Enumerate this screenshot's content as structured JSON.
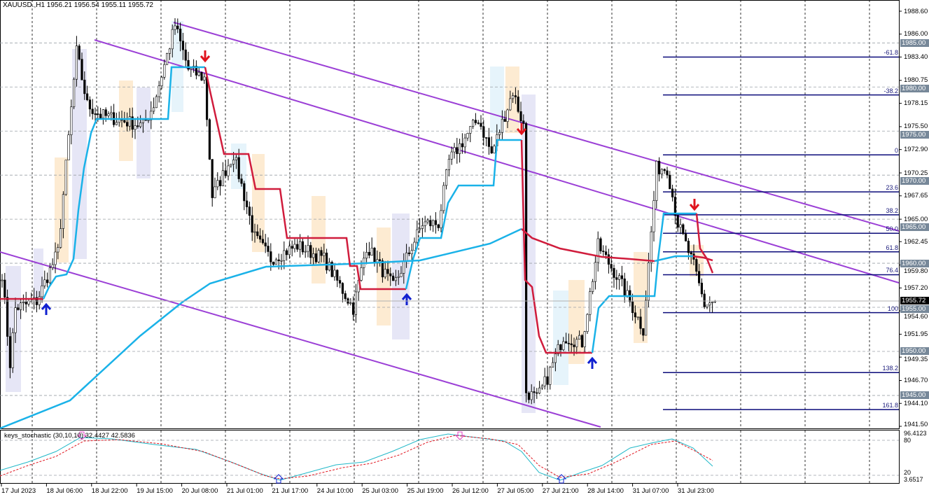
{
  "header": {
    "symbol_title": "XAUUSD.,H1  1956.21 1956.54 1955.11 1955.72"
  },
  "indicator": {
    "label": "keys_stochastic (30,10,10) 32.4427 42.5836",
    "levels": [
      "96.4123",
      "80",
      "20",
      "3.6517"
    ]
  },
  "price_axis": {
    "ticks": [
      "1988.60",
      "1986.00",
      "1983.40",
      "1980.75",
      "1978.15",
      "1975.50",
      "1972.90",
      "1970.25",
      "1967.65",
      "1965.00",
      "1962.45",
      "1959.80",
      "1957.20",
      "1954.60",
      "1951.95",
      "1949.35",
      "1946.70",
      "1944.10",
      "1941.50"
    ],
    "levels": [
      "1985.00",
      "1980.00",
      "1975.00",
      "1970.00",
      "1965.00",
      "1960.00",
      "1955.00",
      "1950.00",
      "1945.00"
    ],
    "current_price": "1955.72"
  },
  "time_axis": [
    "17 Jul 2023",
    "18 Jul 06:00",
    "18 Jul 22:00",
    "19 Jul 15:00",
    "20 Jul 08:00",
    "21 Jul 01:00",
    "21 Jul 17:00",
    "24 Jul 10:00",
    "25 Jul 03:00",
    "25 Jul 19:00",
    "26 Jul 12:00",
    "27 Jul 05:00",
    "27 Jul 21:00",
    "28 Jul 14:00",
    "31 Jul 07:00",
    "31 Jul 23:00"
  ],
  "fibonacci": {
    "levels": [
      {
        "label": "-61.8",
        "price": 1983.4
      },
      {
        "label": "-38.2",
        "price": 1979.1
      },
      {
        "label": "0",
        "price": 1972.3
      },
      {
        "label": "23.6",
        "price": 1968.1
      },
      {
        "label": "38.2",
        "price": 1965.5
      },
      {
        "label": "50.0",
        "price": 1963.4
      },
      {
        "label": "61.8",
        "price": 1961.3
      },
      {
        "label": "76.4",
        "price": 1958.7
      },
      {
        "label": "100",
        "price": 1954.4
      },
      {
        "label": "138.2",
        "price": 1947.6
      },
      {
        "label": "161.8",
        "price": 1943.4
      }
    ]
  },
  "colors": {
    "bull_step": "#1ab2e8",
    "bear_step": "#d01c3c",
    "channel": "#9b3fd6",
    "fib": "#0b0b7a",
    "grid": "#9aa0a6",
    "sell_arrow": "#e0141e",
    "buy_arrow": "#1020d0",
    "stoch_main": "#20b8c8",
    "stoch_signal": "#e0141e"
  },
  "chart_data": {
    "type": "candlestick",
    "symbol": "XAUUSD.",
    "timeframe": "H1",
    "ylim": [
      1941.5,
      1988.6
    ],
    "close_path": [
      [
        0,
        1958.9
      ],
      [
        3,
        1948.6
      ],
      [
        5,
        1954.9
      ],
      [
        13,
        1955.7
      ],
      [
        21,
        1961.3
      ],
      [
        28,
        1984
      ],
      [
        32,
        1978
      ],
      [
        37,
        1976.8
      ],
      [
        53,
        1975.6
      ],
      [
        57,
        1978
      ],
      [
        65,
        1987
      ],
      [
        70,
        1982
      ],
      [
        76,
        1981
      ],
      [
        79,
        1967.6
      ],
      [
        87,
        1972.4
      ],
      [
        95,
        1962.9
      ],
      [
        101,
        1960.5
      ],
      [
        111,
        1962
      ],
      [
        121,
        1960.5
      ],
      [
        132,
        1954.9
      ],
      [
        137,
        1962
      ],
      [
        147,
        1957.3
      ],
      [
        158,
        1964.5
      ],
      [
        164,
        1964.5
      ],
      [
        168,
        1971.6
      ],
      [
        179,
        1976.4
      ],
      [
        184,
        1972.4
      ],
      [
        192,
        1979.5
      ],
      [
        196,
        1975.6
      ],
      [
        197,
        1945.4
      ],
      [
        201,
        1944.6
      ],
      [
        205,
        1947
      ],
      [
        211,
        1951.7
      ],
      [
        218,
        1951
      ],
      [
        224,
        1962
      ],
      [
        232,
        1958.1
      ],
      [
        241,
        1952.5
      ],
      [
        246,
        1970.8
      ],
      [
        250,
        1970.8
      ],
      [
        254,
        1964.5
      ],
      [
        260,
        1959.7
      ],
      [
        264,
        1955.3
      ],
      [
        268,
        1955.72
      ]
    ],
    "signals": {
      "sell_bars": [
        77,
        196,
        261
      ],
      "buy_bars": [
        17,
        153,
        223
      ]
    }
  }
}
